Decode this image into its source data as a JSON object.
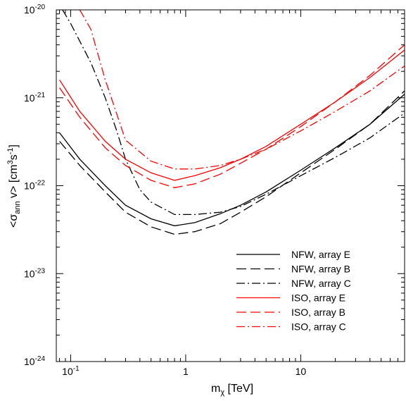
{
  "chart_data": {
    "type": "line",
    "xlabel_main": "m",
    "xlabel_sub": "χ",
    "xlabel_unit": "[TeV]",
    "ylabel_pre": "<σ",
    "ylabel_sub": "ann",
    "ylabel_mid": " v> [cm",
    "ylabel_sup1": "3",
    "ylabel_mid2": "s",
    "ylabel_sup2": "-1",
    "ylabel_post": "]",
    "x_scale": "log",
    "y_scale": "log",
    "xlim": [
      0.075,
      80
    ],
    "ylim": [
      1e-24,
      1e-20
    ],
    "grid": false,
    "legend_position": "lower-right",
    "x_ticks": [
      {
        "value": 0.1,
        "base": "10",
        "exp": "-1"
      },
      {
        "value": 1,
        "text": "1"
      },
      {
        "value": 10,
        "text": "10"
      }
    ],
    "y_ticks": [
      {
        "value": 1e-24,
        "base": "10",
        "exp": "-24"
      },
      {
        "value": 1e-23,
        "base": "10",
        "exp": "-23"
      },
      {
        "value": 1e-22,
        "base": "10",
        "exp": "-22"
      },
      {
        "value": 1e-21,
        "base": "10",
        "exp": "-21"
      },
      {
        "value": 1e-20,
        "base": "10",
        "exp": "-20"
      }
    ],
    "series": [
      {
        "name": "NFW, array E",
        "color": "#000000",
        "dash": "solid",
        "x": [
          0.08,
          0.12,
          0.2,
          0.3,
          0.5,
          0.8,
          1.2,
          2,
          3,
          5,
          10,
          20,
          40,
          80
        ],
        "y": [
          4e-22,
          2e-22,
          1e-22,
          6e-23,
          4.2e-23,
          3.5e-23,
          3.8e-23,
          4.8e-23,
          6e-23,
          8.5e-23,
          1.5e-22,
          2.7e-22,
          5e-22,
          1.1e-21
        ]
      },
      {
        "name": "NFW, array B",
        "color": "#000000",
        "dash": "dash",
        "x": [
          0.08,
          0.12,
          0.2,
          0.3,
          0.5,
          0.8,
          1.2,
          2,
          3,
          5,
          10,
          20,
          40,
          80
        ],
        "y": [
          3.2e-22,
          1.7e-22,
          8.5e-23,
          5e-23,
          3.4e-23,
          2.8e-23,
          3e-23,
          3.7e-23,
          5e-23,
          7.5e-23,
          1.4e-22,
          2.6e-22,
          5e-22,
          1.2e-21
        ]
      },
      {
        "name": "NFW, array C",
        "color": "#000000",
        "dash": "dashdot",
        "x": [
          0.085,
          0.1,
          0.15,
          0.2,
          0.25,
          0.3,
          0.4,
          0.5,
          0.8,
          1.2,
          2,
          3,
          5,
          10,
          20,
          40,
          80
        ],
        "y": [
          1e-20,
          7e-21,
          2.5e-21,
          1e-21,
          4.3e-22,
          2e-22,
          9e-23,
          6.5e-23,
          4.7e-23,
          4.7e-23,
          5e-23,
          5.8e-23,
          8e-23,
          1.3e-22,
          2.1e-22,
          3.5e-22,
          6.7e-22
        ]
      },
      {
        "name": "ISO, array E",
        "color": "#ff0000",
        "dash": "solid",
        "x": [
          0.08,
          0.12,
          0.2,
          0.3,
          0.5,
          0.8,
          1.2,
          2,
          3,
          5,
          10,
          20,
          40,
          80
        ],
        "y": [
          1.6e-21,
          7e-22,
          3.2e-22,
          2e-22,
          1.4e-22,
          1.15e-22,
          1.3e-22,
          1.6e-22,
          2e-22,
          2.8e-22,
          5e-22,
          9e-22,
          1.7e-21,
          3.5e-21
        ]
      },
      {
        "name": "ISO, array B",
        "color": "#ff0000",
        "dash": "dash",
        "x": [
          0.08,
          0.12,
          0.2,
          0.3,
          0.5,
          0.8,
          1.2,
          2,
          3,
          5,
          10,
          20,
          40,
          80
        ],
        "y": [
          1.3e-21,
          6e-22,
          2.7e-22,
          1.7e-22,
          1.15e-22,
          9.5e-23,
          1.05e-22,
          1.35e-22,
          1.8e-22,
          2.6e-22,
          4.7e-22,
          9e-22,
          1.8e-21,
          4e-21
        ]
      },
      {
        "name": "ISO, array C",
        "color": "#ff0000",
        "dash": "dashdot",
        "x": [
          0.12,
          0.15,
          0.2,
          0.3,
          0.5,
          0.8,
          1.2,
          2,
          3,
          5,
          10,
          20,
          40,
          80
        ],
        "y": [
          1e-20,
          6e-21,
          1.6e-21,
          3.3e-22,
          1.9e-22,
          1.55e-22,
          1.55e-22,
          1.7e-22,
          2e-22,
          2.6e-22,
          4.2e-22,
          7e-22,
          1.2e-21,
          2.3e-21
        ]
      }
    ]
  }
}
